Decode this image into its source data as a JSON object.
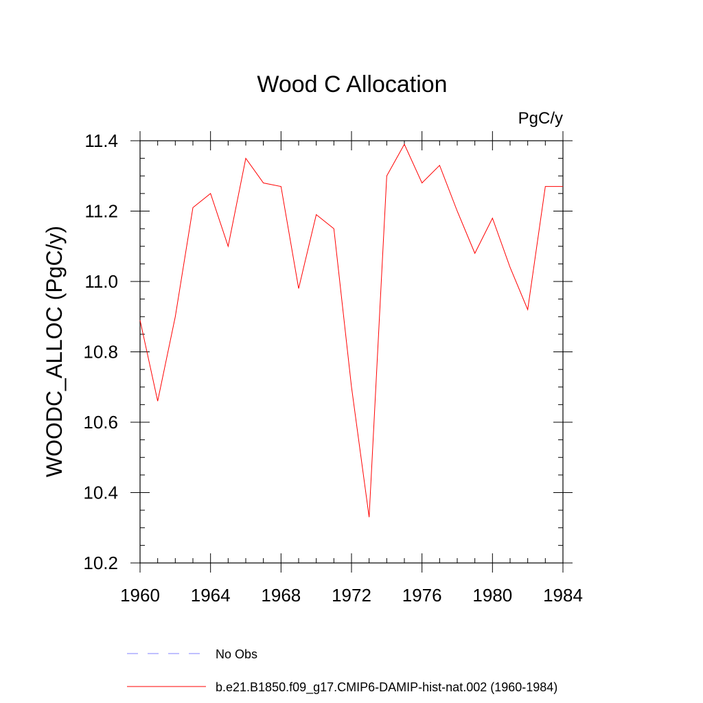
{
  "chart_data": {
    "type": "line",
    "title": "Wood C Allocation",
    "units_label": "PgC/y",
    "ylabel": "WOODC_ALLOC  (PgC/y)",
    "xlabel": "",
    "xlim": [
      1960,
      1984
    ],
    "ylim": [
      10.2,
      11.4
    ],
    "x_ticks": [
      "1960",
      "1964",
      "1968",
      "1972",
      "1976",
      "1980",
      "1984"
    ],
    "y_ticks": [
      "10.2",
      "10.4",
      "10.6",
      "10.8",
      "11.0",
      "11.2",
      "11.4"
    ],
    "grid": false,
    "legend_position": "bottom",
    "series": [
      {
        "name": "No Obs",
        "color": "#8080ff",
        "dash": "dashed",
        "x": [],
        "values": []
      },
      {
        "name": "b.e21.B1850.f09_g17.CMIP6-DAMIP-hist-nat.002 (1960-1984)",
        "color": "#ff0000",
        "dash": "solid",
        "x": [
          1960,
          1961,
          1962,
          1963,
          1964,
          1965,
          1966,
          1967,
          1968,
          1969,
          1970,
          1971,
          1972,
          1973,
          1974,
          1975,
          1976,
          1977,
          1978,
          1979,
          1980,
          1981,
          1982,
          1983,
          1984
        ],
        "values": [
          10.89,
          10.66,
          10.9,
          11.21,
          11.25,
          11.1,
          11.35,
          11.28,
          11.27,
          10.98,
          11.19,
          11.15,
          10.7,
          10.33,
          11.3,
          11.39,
          11.28,
          11.33,
          11.2,
          11.08,
          11.18,
          11.04,
          10.92,
          11.27,
          11.27
        ]
      }
    ]
  }
}
